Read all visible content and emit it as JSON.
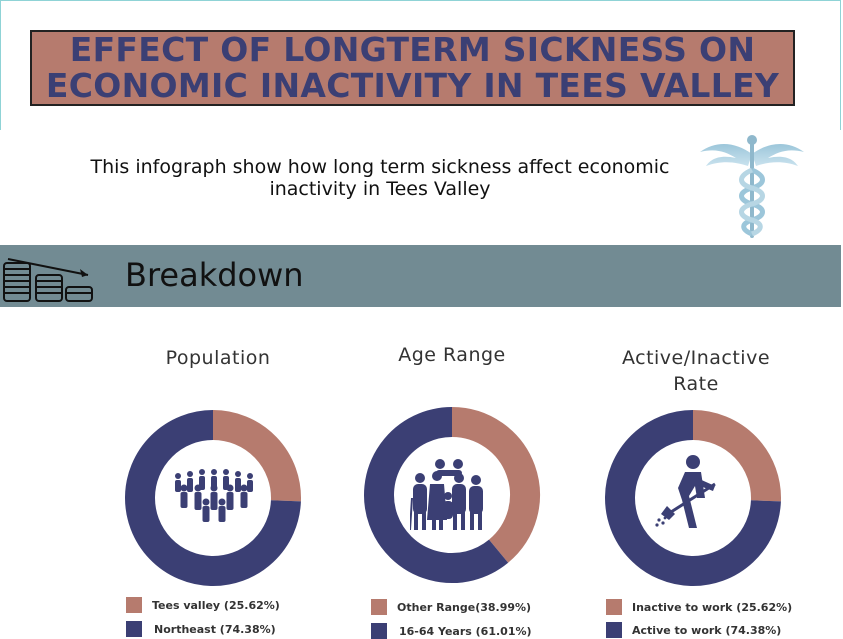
{
  "header": {
    "title_line1": "EFFECT OF LONGTERM SICKNESS ON",
    "title_line2": "ECONOMIC INACTIVITY IN TEES VALLEY",
    "subtitle_line1": "This infograph show how long term sickness affect economic",
    "subtitle_line2": "inactivity in Tees Valley"
  },
  "section": {
    "title": "Breakdown"
  },
  "colors": {
    "brown": "#b67b6e",
    "navy": "#3b3f74",
    "bar": "#728b93",
    "title_bg": "#b67b6e"
  },
  "icons": [
    "caduceus-icon",
    "coins-chart-icon",
    "crowd-icon",
    "family-icon",
    "worker-shovel-icon"
  ],
  "chart_data": [
    {
      "type": "pie",
      "title": "Population",
      "labels": [
        "Tees valley (25.62%)",
        "Northeast (74.38%)"
      ],
      "values": [
        25.62,
        74.38
      ],
      "colors": [
        "#b67b6e",
        "#3b3f74"
      ]
    },
    {
      "type": "pie",
      "title": "Age Range",
      "labels": [
        "Other Range(38.99%)",
        "16-64 Years (61.01%)"
      ],
      "values": [
        38.99,
        61.01
      ],
      "colors": [
        "#b67b6e",
        "#3b3f74"
      ]
    },
    {
      "type": "pie",
      "title_line1": "Active/Inactive",
      "title_line2": "Rate",
      "labels": [
        "Inactive to work (25.62%)",
        "Active to work (74.38%)"
      ],
      "values": [
        25.62,
        74.38
      ],
      "colors": [
        "#b67b6e",
        "#3b3f74"
      ]
    }
  ]
}
